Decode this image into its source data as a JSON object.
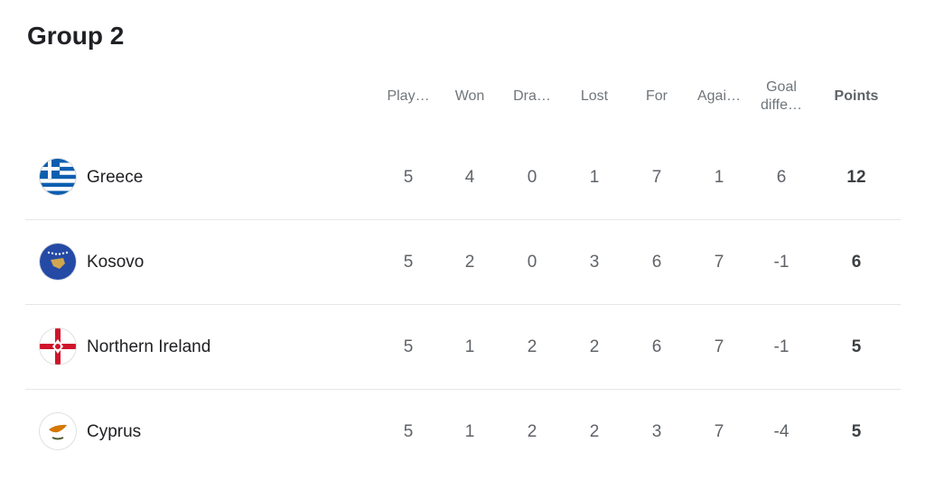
{
  "title": "Group 2",
  "columns": [
    "Play…",
    "Won",
    "Dra…",
    "Lost",
    "For",
    "Agai…",
    "Goal diffe…",
    "Points"
  ],
  "rows": [
    {
      "team": "Greece",
      "flag": "greece-flag-icon",
      "values": [
        "5",
        "4",
        "0",
        "1",
        "7",
        "1",
        "6",
        "12"
      ]
    },
    {
      "team": "Kosovo",
      "flag": "kosovo-flag-icon",
      "values": [
        "5",
        "2",
        "0",
        "3",
        "6",
        "7",
        "-1",
        "6"
      ]
    },
    {
      "team": "Northern Ireland",
      "flag": "northern-ireland-flag-icon",
      "values": [
        "5",
        "1",
        "2",
        "2",
        "6",
        "7",
        "-1",
        "5"
      ]
    },
    {
      "team": "Cyprus",
      "flag": "cyprus-flag-icon",
      "values": [
        "5",
        "1",
        "2",
        "2",
        "3",
        "7",
        "-4",
        "5"
      ]
    }
  ]
}
